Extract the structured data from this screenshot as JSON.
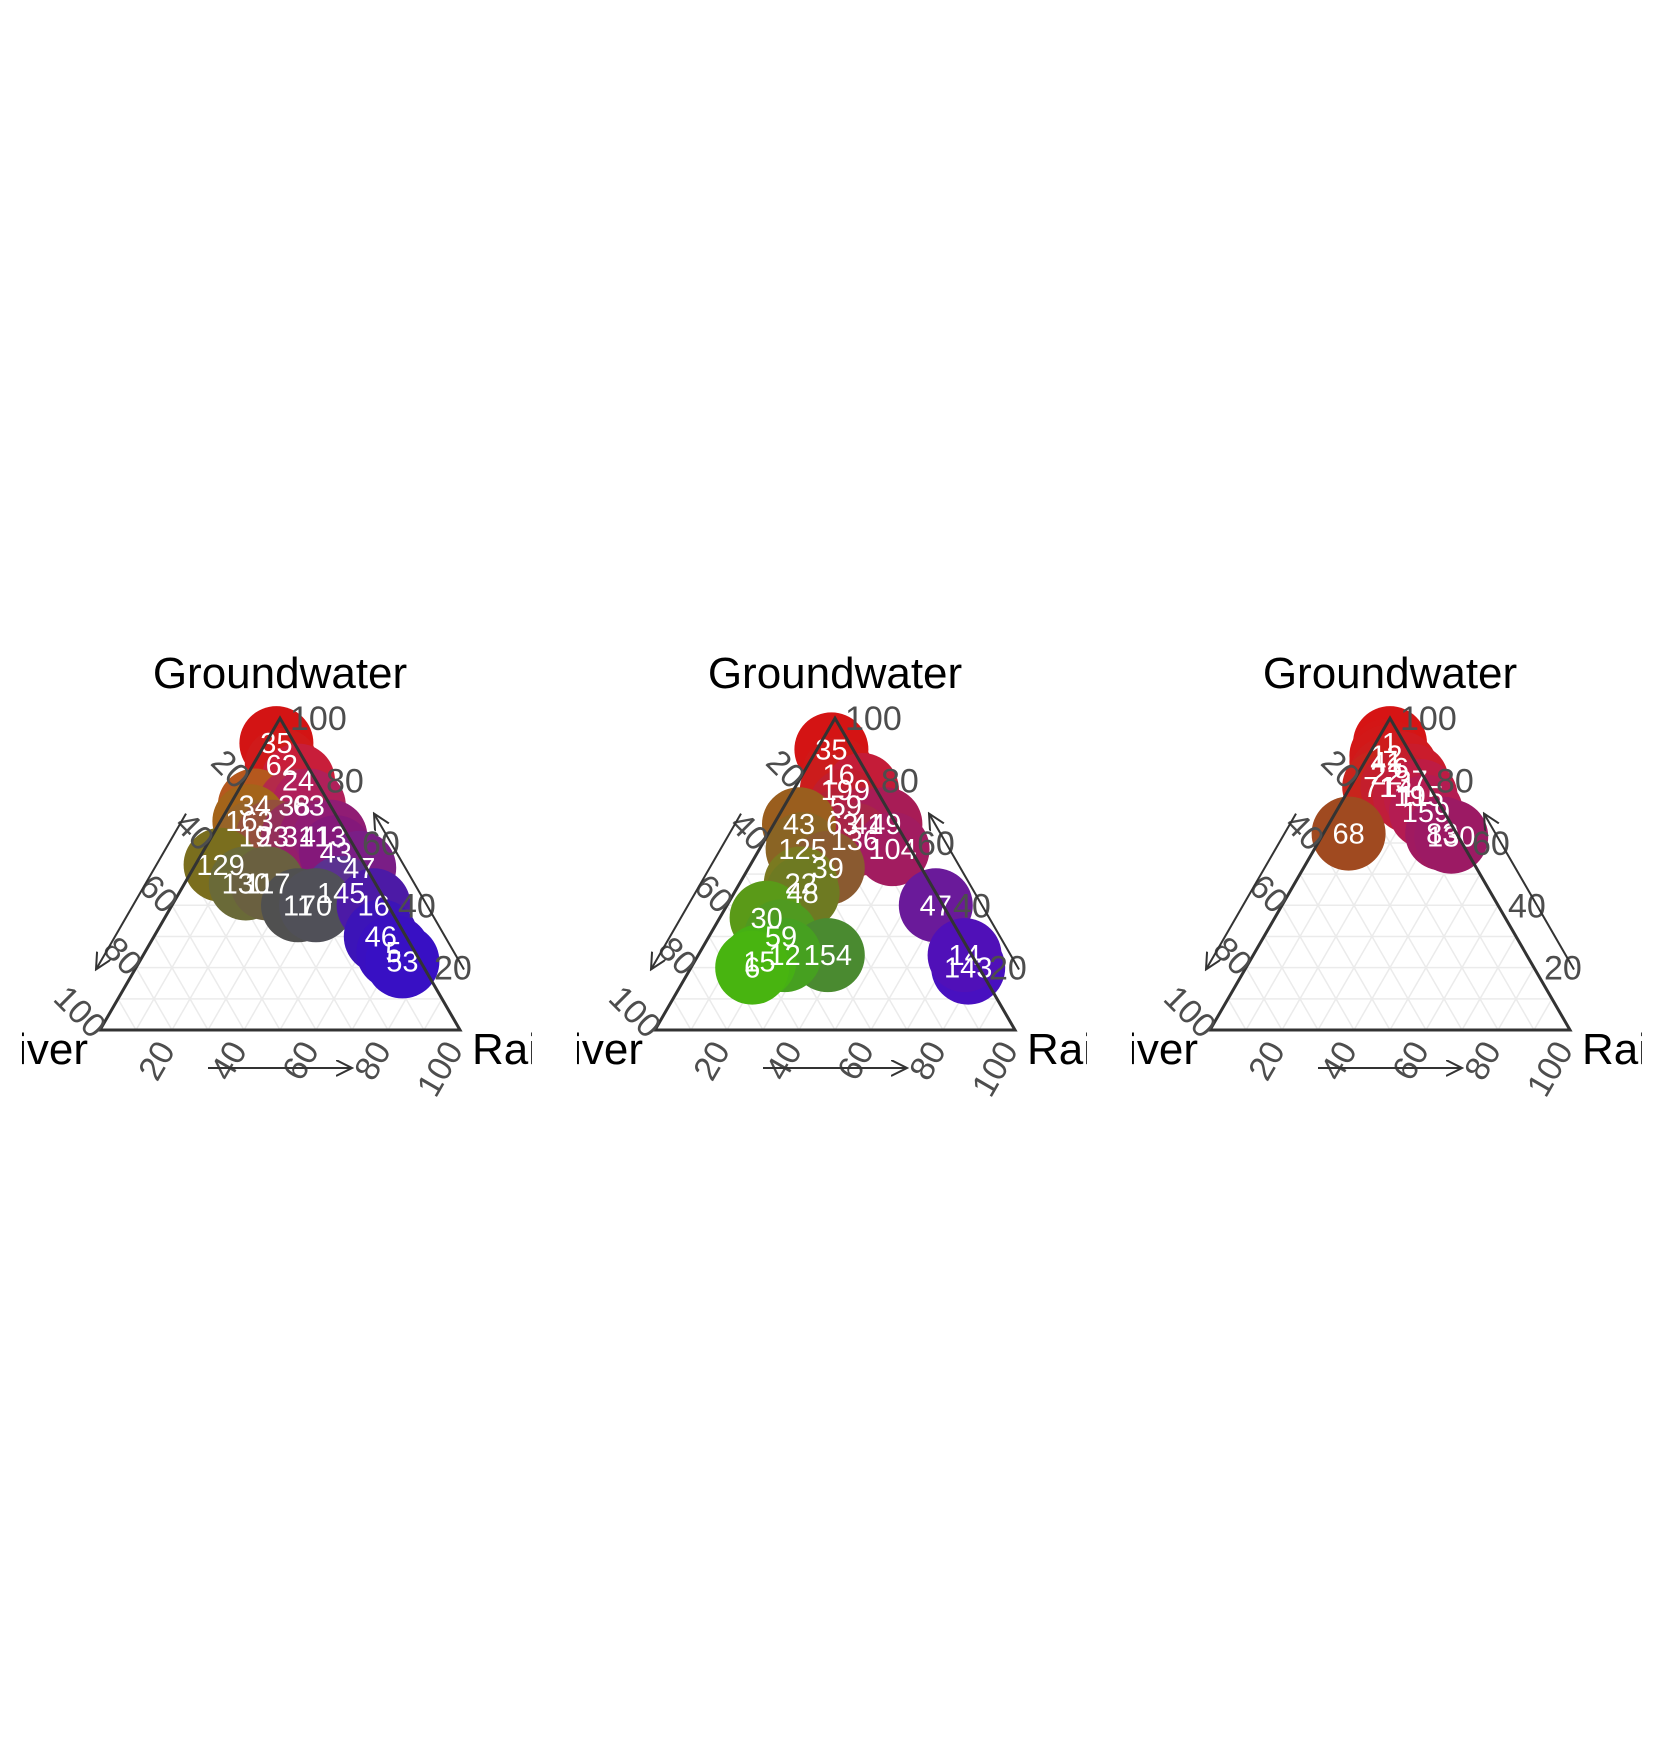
{
  "colors": {
    "frame": "#333333",
    "grid": "#ebebeb",
    "tick_text": "#4d4d4d",
    "point_label": "#ffffff"
  },
  "chart_data": [
    {
      "type": "scatter",
      "subtype": "ternary",
      "title": "Groundwater",
      "axes": {
        "top": "Groundwater",
        "left": "River",
        "right": "Rain"
      },
      "ticks": [
        20,
        40,
        60,
        80,
        100
      ],
      "grid": true,
      "points": [
        {
          "label": "35",
          "groundwater": 92,
          "river": 5,
          "rain": 3,
          "color": "#d31414"
        },
        {
          "label": "62",
          "groundwater": 85,
          "river": 7,
          "rain": 8,
          "color": "#d01a1a"
        },
        {
          "label": "24",
          "groundwater": 80,
          "river": 5,
          "rain": 15,
          "color": "#c81e3a"
        },
        {
          "label": "34",
          "groundwater": 72,
          "river": 21,
          "rain": 7,
          "color": "#b5581e"
        },
        {
          "label": "38",
          "groundwater": 72,
          "river": 10,
          "rain": 18,
          "color": "#b42a4a"
        },
        {
          "label": "63",
          "groundwater": 72,
          "river": 6,
          "rain": 22,
          "color": "#b0205a"
        },
        {
          "label": "163",
          "groundwater": 67,
          "river": 25,
          "rain": 8,
          "color": "#a4641a"
        },
        {
          "label": "19",
          "groundwater": 62,
          "river": 26,
          "rain": 12,
          "color": "#986428"
        },
        {
          "label": "23",
          "groundwater": 62,
          "river": 21,
          "rain": 17,
          "color": "#94503c"
        },
        {
          "label": "31",
          "groundwater": 62,
          "river": 14,
          "rain": 24,
          "color": "#94305a"
        },
        {
          "label": "41",
          "groundwater": 62,
          "river": 9,
          "rain": 29,
          "color": "#941e6a"
        },
        {
          "label": "13",
          "groundwater": 62,
          "river": 5,
          "rain": 33,
          "color": "#901c74"
        },
        {
          "label": "43",
          "groundwater": 57,
          "river": 6,
          "rain": 37,
          "color": "#84187a"
        },
        {
          "label": "129",
          "groundwater": 53,
          "river": 40,
          "rain": 7,
          "color": "#7a6e1e"
        },
        {
          "label": "47",
          "groundwater": 52,
          "river": 2,
          "rain": 46,
          "color": "#7a1e86"
        },
        {
          "label": "130",
          "groundwater": 47,
          "river": 36,
          "rain": 17,
          "color": "#6a6a38"
        },
        {
          "label": "117",
          "groundwater": 47,
          "river": 30,
          "rain": 23,
          "color": "#6a6040"
        },
        {
          "label": "145",
          "groundwater": 44,
          "river": 11,
          "rain": 45,
          "color": "#5a3290"
        },
        {
          "label": "11",
          "groundwater": 40,
          "river": 25,
          "rain": 35,
          "color": "#505050"
        },
        {
          "label": "70",
          "groundwater": 40,
          "river": 20,
          "rain": 40,
          "color": "#505058"
        },
        {
          "label": "16",
          "groundwater": 40,
          "river": 4,
          "rain": 56,
          "color": "#4c1aa6"
        },
        {
          "label": "46",
          "groundwater": 30,
          "river": 7,
          "rain": 63,
          "color": "#3c14b8"
        },
        {
          "label": "5",
          "groundwater": 25,
          "river": 6,
          "rain": 69,
          "color": "#3a10c0"
        },
        {
          "label": "53",
          "groundwater": 22,
          "river": 5,
          "rain": 73,
          "color": "#3810c4"
        }
      ]
    },
    {
      "type": "scatter",
      "subtype": "ternary",
      "title": "Groundwater",
      "axes": {
        "top": "Groundwater",
        "left": "River",
        "right": "Rain"
      },
      "ticks": [
        20,
        40,
        60,
        80,
        100
      ],
      "grid": true,
      "points": [
        {
          "label": "35",
          "groundwater": 90,
          "river": 6,
          "rain": 4,
          "color": "#d41414"
        },
        {
          "label": "16",
          "groundwater": 82,
          "river": 8,
          "rain": 10,
          "color": "#d01818"
        },
        {
          "label": "19",
          "groundwater": 77,
          "river": 11,
          "rain": 12,
          "color": "#cc1c1c"
        },
        {
          "label": "9",
          "groundwater": 77,
          "river": 4,
          "rain": 19,
          "color": "#c41c38"
        },
        {
          "label": "59",
          "groundwater": 72,
          "river": 11,
          "rain": 17,
          "color": "#c01e2e"
        },
        {
          "label": "63",
          "groundwater": 66,
          "river": 15,
          "rain": 19,
          "color": "#b42236"
        },
        {
          "label": "41",
          "groundwater": 66,
          "river": 8,
          "rain": 26,
          "color": "#b01e46"
        },
        {
          "label": "49",
          "groundwater": 66,
          "river": 3,
          "rain": 31,
          "color": "#a81c56"
        },
        {
          "label": "136",
          "groundwater": 61,
          "river": 14,
          "rain": 25,
          "color": "#a82648"
        },
        {
          "label": "43",
          "groundwater": 66,
          "river": 27,
          "rain": 7,
          "color": "#9a5e1e"
        },
        {
          "label": "104",
          "groundwater": 58,
          "river": 5,
          "rain": 37,
          "color": "#a21c60"
        },
        {
          "label": "125",
          "groundwater": 58,
          "river": 30,
          "rain": 12,
          "color": "#8a6424"
        },
        {
          "label": "39",
          "groundwater": 52,
          "river": 26,
          "rain": 22,
          "color": "#8a5a30"
        },
        {
          "label": "22",
          "groundwater": 47,
          "river": 36,
          "rain": 17,
          "color": "#7a7a20"
        },
        {
          "label": "48",
          "groundwater": 44,
          "river": 37,
          "rain": 19,
          "color": "#6e7a22"
        },
        {
          "label": "47",
          "groundwater": 40,
          "river": 2,
          "rain": 58,
          "color": "#6a1a9a"
        },
        {
          "label": "30",
          "groundwater": 36,
          "river": 51,
          "rain": 13,
          "color": "#5a9a18"
        },
        {
          "label": "59",
          "groundwater": 30,
          "river": 50,
          "rain": 20,
          "color": "#509a20"
        },
        {
          "label": "154",
          "groundwater": 24,
          "river": 40,
          "rain": 36,
          "color": "#4a8a30"
        },
        {
          "label": "12",
          "groundwater": 24,
          "river": 52,
          "rain": 24,
          "color": "#46a020"
        },
        {
          "label": "15",
          "groundwater": 22,
          "river": 60,
          "rain": 18,
          "color": "#46b014"
        },
        {
          "label": "6",
          "groundwater": 20,
          "river": 63,
          "rain": 17,
          "color": "#48b410"
        },
        {
          "label": "143",
          "groundwater": 20,
          "river": 3,
          "rain": 77,
          "color": "#4810c0"
        },
        {
          "label": "14",
          "groundwater": 24,
          "river": 2,
          "rain": 74,
          "color": "#5010b8"
        }
      ]
    },
    {
      "type": "scatter",
      "subtype": "ternary",
      "title": "Groundwater",
      "axes": {
        "top": "Groundwater",
        "left": "River",
        "right": "Rain"
      },
      "ticks": [
        20,
        40,
        60,
        80,
        100
      ],
      "grid": true,
      "points": [
        {
          "label": "1",
          "groundwater": 92,
          "river": 4,
          "rain": 4,
          "color": "#d61414"
        },
        {
          "label": "12",
          "groundwater": 88,
          "river": 7,
          "rain": 5,
          "color": "#d41616"
        },
        {
          "label": "41",
          "groundwater": 86,
          "river": 8,
          "rain": 6,
          "color": "#d21818"
        },
        {
          "label": "6",
          "groundwater": 84,
          "river": 5,
          "rain": 11,
          "color": "#d01a20"
        },
        {
          "label": "22",
          "groundwater": 82,
          "river": 10,
          "rain": 8,
          "color": "#ce1c1c"
        },
        {
          "label": "37",
          "groundwater": 80,
          "river": 4,
          "rain": 16,
          "color": "#ca1c2c"
        },
        {
          "label": "71",
          "groundwater": 78,
          "river": 14,
          "rain": 8,
          "color": "#c8241c"
        },
        {
          "label": "14",
          "groundwater": 78,
          "river": 9,
          "rain": 13,
          "color": "#c41e2c"
        },
        {
          "label": "19",
          "groundwater": 75,
          "river": 7,
          "rain": 18,
          "color": "#c01e3a"
        },
        {
          "label": "115",
          "groundwater": 75,
          "river": 4,
          "rain": 21,
          "color": "#be1c44"
        },
        {
          "label": "159",
          "groundwater": 70,
          "river": 5,
          "rain": 25,
          "color": "#b41c52"
        },
        {
          "label": "68",
          "groundwater": 63,
          "river": 30,
          "rain": 7,
          "color": "#a04a20"
        },
        {
          "label": "83",
          "groundwater": 63,
          "river": 4,
          "rain": 33,
          "color": "#a01a60"
        },
        {
          "label": "130",
          "groundwater": 62,
          "river": 2,
          "rain": 36,
          "color": "#9c1a64"
        }
      ]
    }
  ]
}
